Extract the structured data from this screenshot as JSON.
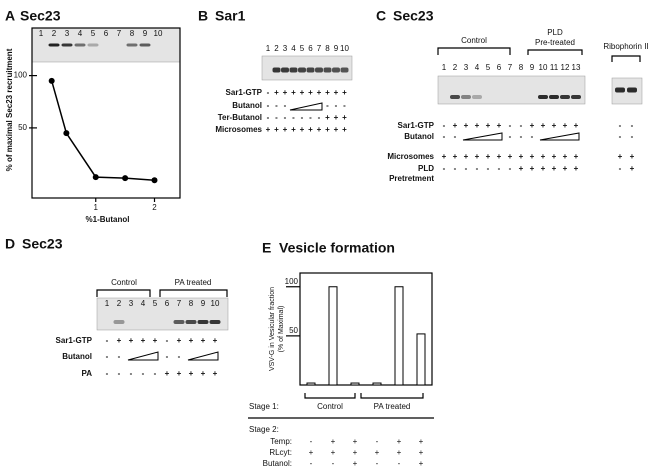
{
  "panels": [
    {
      "letter": "A",
      "title": "Sec23",
      "lanes": [
        1,
        2,
        3,
        4,
        5,
        6,
        7,
        8,
        9,
        10
      ]
    },
    {
      "letter": "B",
      "title": "Sar1",
      "lanes": [
        1,
        2,
        3,
        4,
        5,
        6,
        7,
        8,
        9,
        10
      ],
      "rows": [
        {
          "label": [
            "Sar1-GTP"
          ],
          "signs": [
            "-",
            "+",
            "+",
            "+",
            "+",
            "+",
            "+",
            "+",
            "+",
            "+"
          ]
        },
        {
          "label": [
            "Butanol"
          ],
          "signs": [
            "-",
            "-",
            "-",
            null,
            null,
            null,
            null,
            "-",
            "-",
            "-"
          ]
        },
        {
          "label": [
            "Ter-Butanol"
          ],
          "signs": [
            "-",
            "-",
            "-",
            "-",
            "-",
            "-",
            "-",
            "+",
            "+",
            "+"
          ]
        },
        {
          "label": [
            "Microsomes"
          ],
          "signs": [
            "+",
            "+",
            "+",
            "+",
            "+",
            "+",
            "+",
            "+",
            "+",
            "+"
          ]
        }
      ]
    },
    {
      "letter": "C",
      "title": "Sec23",
      "groups": [
        [
          "Control"
        ],
        [
          "PLD",
          "Pre-treated"
        ]
      ],
      "side_title": "Ribophorin II",
      "lanes": [
        1,
        2,
        3,
        4,
        5,
        6,
        7,
        8,
        9,
        10,
        11,
        12,
        13
      ],
      "rows": [
        {
          "label": [
            "Sar1-GTP"
          ],
          "signs": [
            "-",
            "+",
            "+",
            "+",
            "+",
            "+",
            "-",
            "-",
            "+",
            "+",
            "+",
            "+",
            "+"
          ],
          "side": [
            "-",
            "-"
          ]
        },
        {
          "label": [
            "Butanol"
          ],
          "signs": [
            "-",
            "-",
            null,
            null,
            null,
            null,
            "-",
            "-",
            "-",
            null,
            null,
            null,
            null
          ],
          "side": [
            "-",
            "-"
          ]
        },
        {
          "label": [
            "Microsomes"
          ],
          "signs": [
            "+",
            "+",
            "+",
            "+",
            "+",
            "+",
            "+",
            "+",
            "+",
            "+",
            "+",
            "+",
            "+"
          ],
          "side": [
            "+",
            "+"
          ]
        },
        {
          "label": [
            "PLD",
            "Pretretment"
          ],
          "signs": [
            "-",
            "-",
            "-",
            "-",
            "-",
            "-",
            "-",
            "+",
            "+",
            "+",
            "+",
            "+",
            "+"
          ],
          "side": [
            "-",
            "+"
          ]
        }
      ]
    },
    {
      "letter": "D",
      "title": "Sec23",
      "groups": [
        [
          "Control"
        ],
        [
          "PA treated"
        ]
      ],
      "lanes": [
        1,
        2,
        3,
        4,
        5,
        6,
        7,
        8,
        9,
        10
      ],
      "rows": [
        {
          "label": [
            "Sar1-GTP"
          ],
          "signs": [
            "-",
            "+",
            "+",
            "+",
            "+",
            "-",
            "+",
            "+",
            "+",
            "+"
          ]
        },
        {
          "label": [
            "Butanol"
          ],
          "signs": [
            "-",
            "-",
            null,
            null,
            null,
            "-",
            "-",
            null,
            null,
            null
          ]
        },
        {
          "label": [
            "PA"
          ],
          "signs": [
            "-",
            "-",
            "-",
            "-",
            "-",
            "+",
            "+",
            "+",
            "+",
            "+"
          ]
        }
      ]
    },
    {
      "letter": "E",
      "title": "Vesicle formation",
      "stage1": "Stage 1:",
      "groups": [
        "Control",
        "PA treated"
      ],
      "stage2": "Stage 2:",
      "rows": [
        {
          "label": [
            "Temp:"
          ],
          "signs": [
            "-",
            "+",
            "+",
            "-",
            "+",
            "+"
          ]
        },
        {
          "label": [
            "RLcyt:"
          ],
          "signs": [
            "+",
            "+",
            "+",
            "+",
            "+",
            "+"
          ]
        },
        {
          "label": [
            "Butanol:"
          ],
          "signs": [
            "-",
            "-",
            "+",
            "-",
            "-",
            "+"
          ]
        }
      ]
    }
  ],
  "chart_data": [
    {
      "type": "line",
      "x": [
        0.25,
        0.5,
        1,
        1.5,
        2
      ],
      "values": [
        95,
        45,
        3,
        2,
        0
      ],
      "color": "#000000",
      "xlim": [
        0,
        2.4
      ],
      "ylim": [
        -17,
        113
      ],
      "xticks": [
        1,
        2
      ],
      "yticks": [
        50,
        100
      ],
      "xlabel": "%1-Butanol",
      "ylabel": "% of maximal Sec23 recruitment"
    },
    {
      "type": "bar",
      "categories": [
        null,
        null,
        null,
        null,
        null,
        null
      ],
      "values": [
        2,
        100,
        2,
        2,
        100,
        52
      ],
      "color": "#ffffff",
      "ylim": [
        0,
        114
      ],
      "yticks": [
        50,
        100
      ],
      "ylabel": [
        "VSV-G in Vesicular fraction",
        "(% of Maximal)"
      ]
    }
  ]
}
